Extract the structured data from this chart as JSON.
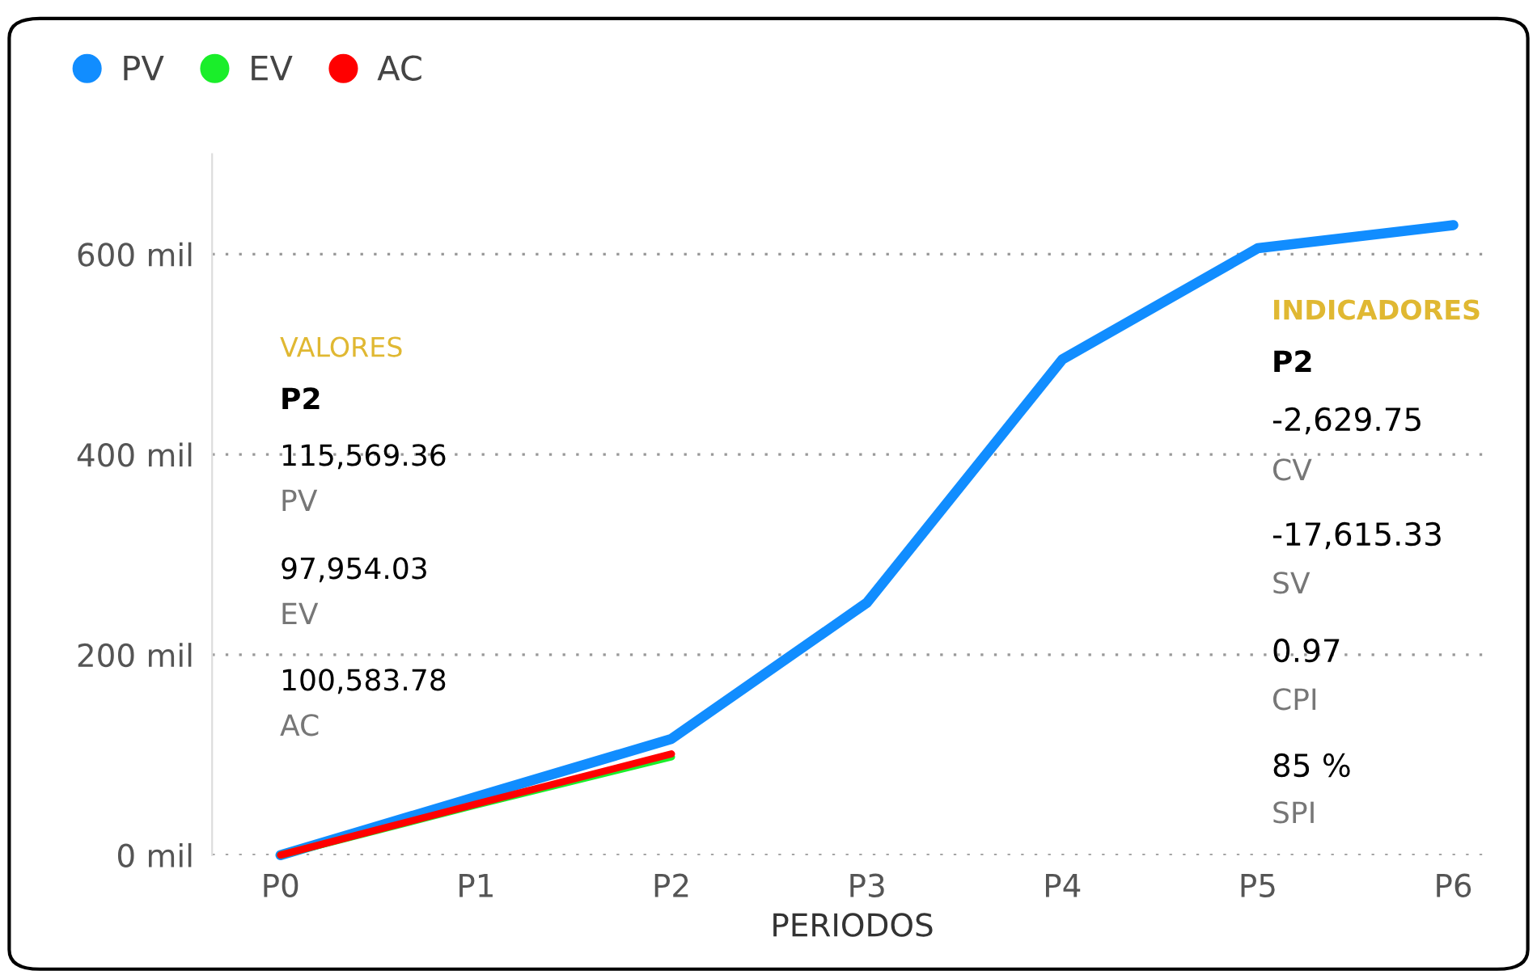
{
  "chart_data": {
    "type": "line",
    "xlabel": "PERIODOS",
    "categories": [
      "P0",
      "P1",
      "P2",
      "P3",
      "P4",
      "P5",
      "P6"
    ],
    "series": [
      {
        "name": "PV",
        "color": "#118dff",
        "values": [
          0,
          58,
          116,
          252,
          495,
          606,
          629
        ]
      },
      {
        "name": "EV",
        "color": "#1aee2a",
        "values": [
          0,
          50,
          98,
          null,
          null,
          null,
          null
        ]
      },
      {
        "name": "AC",
        "color": "#ff0000",
        "values": [
          0,
          51,
          101,
          null,
          null,
          null,
          null
        ]
      }
    ],
    "ylim": [
      0,
      700
    ],
    "yticks": [
      {
        "value": 0,
        "label": "0 mil"
      },
      {
        "value": 200,
        "label": "200 mil"
      },
      {
        "value": 400,
        "label": "400 mil"
      },
      {
        "value": 600,
        "label": "600 mil"
      }
    ],
    "grid": "y",
    "legend": "top left",
    "line_style": "solid",
    "annotations": [
      "VALORES",
      "P2",
      "115,569.36",
      "PV",
      "97,954.03",
      "EV",
      "100,583.78",
      "AC",
      "INDICADORES",
      "P2",
      "-2,629.75",
      "CV",
      "-17,615.33",
      "SV",
      "0.97",
      "CPI",
      "85 %",
      "SPI"
    ]
  }
}
